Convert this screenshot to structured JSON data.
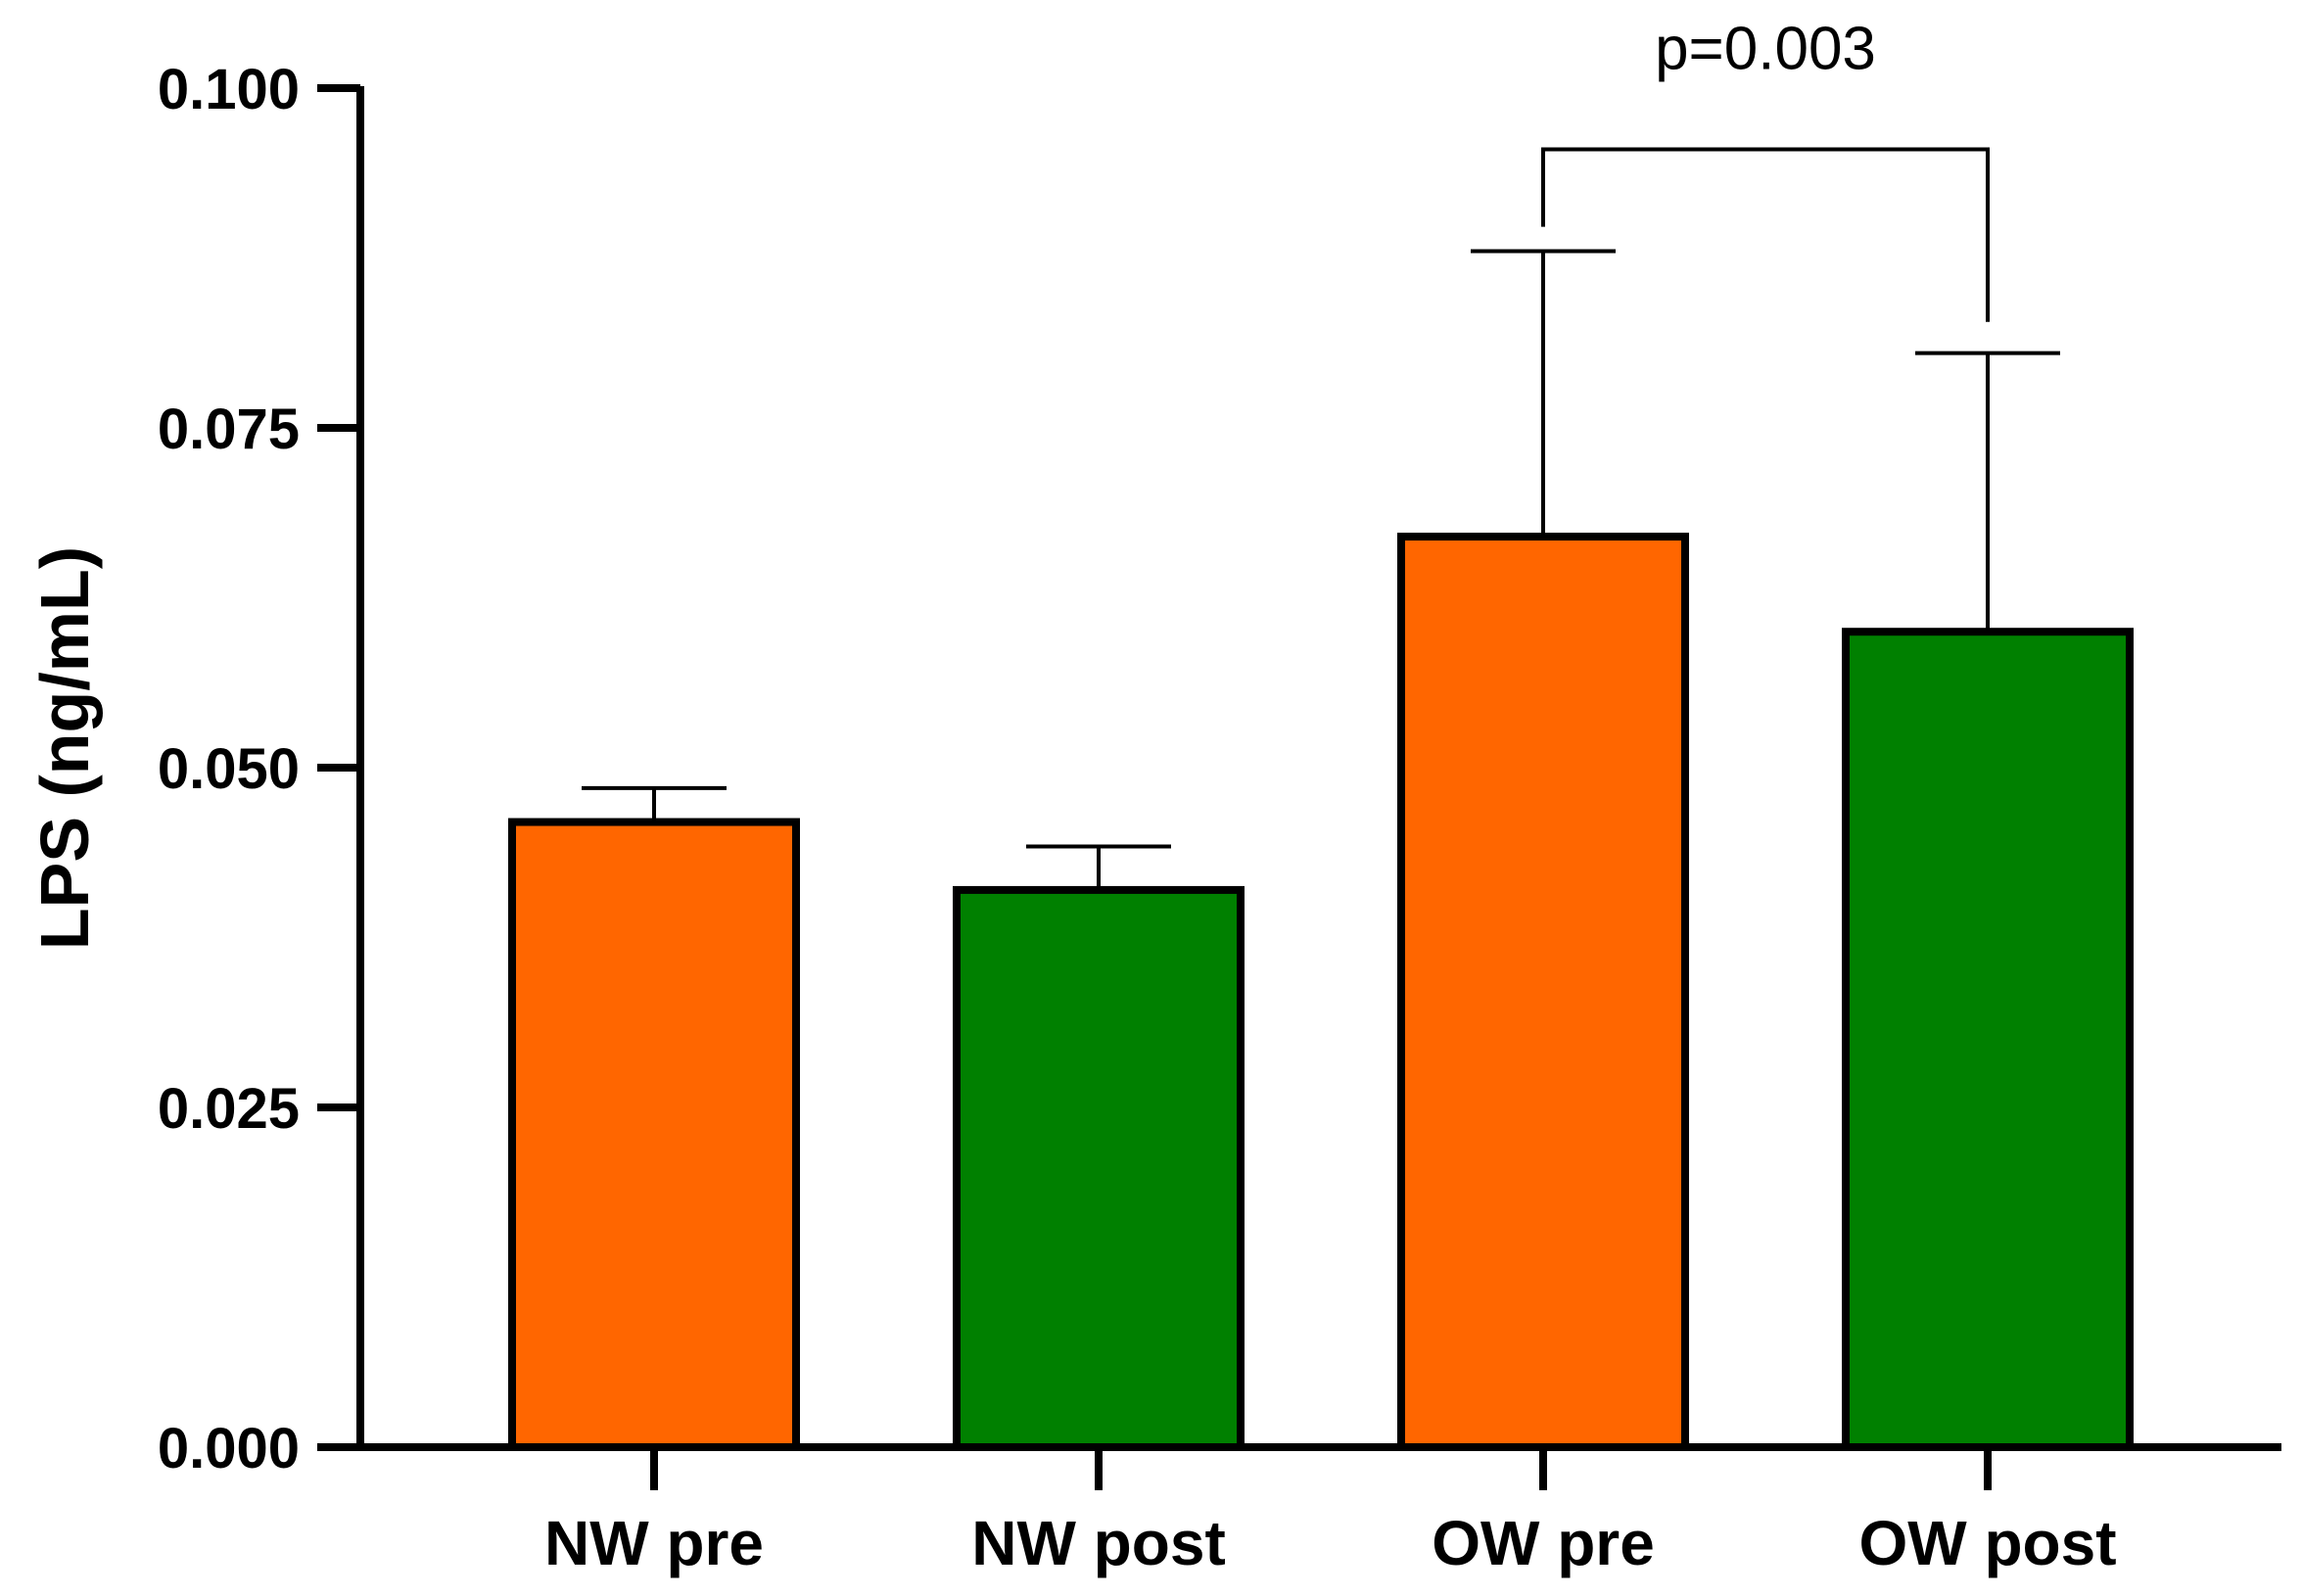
{
  "chart_data": {
    "type": "bar",
    "title": "",
    "xlabel": "",
    "ylabel": "LPS (ng/mL)",
    "ylim": [
      0,
      0.1
    ],
    "yticks": [
      "0.000",
      "0.025",
      "0.050",
      "0.075",
      "0.100"
    ],
    "ytick_values": [
      0,
      0.025,
      0.05,
      0.075,
      0.1
    ],
    "grid": false,
    "categories": [
      "NW pre",
      "NW post",
      "OW pre",
      "OW post"
    ],
    "values": [
      0.046,
      0.041,
      0.067,
      0.06
    ],
    "error_upper": [
      0.0485,
      0.0442,
      0.088,
      0.0805
    ],
    "colors": [
      "#ff6600",
      "#008000",
      "#ff6600",
      "#008000"
    ],
    "annotations": [
      {
        "text": "p=0.003",
        "from_category": "OW pre",
        "to_category": "OW post",
        "bracket_y": 0.0955,
        "left_drop_to": 0.0898,
        "right_drop_to": 0.0828
      }
    ]
  }
}
